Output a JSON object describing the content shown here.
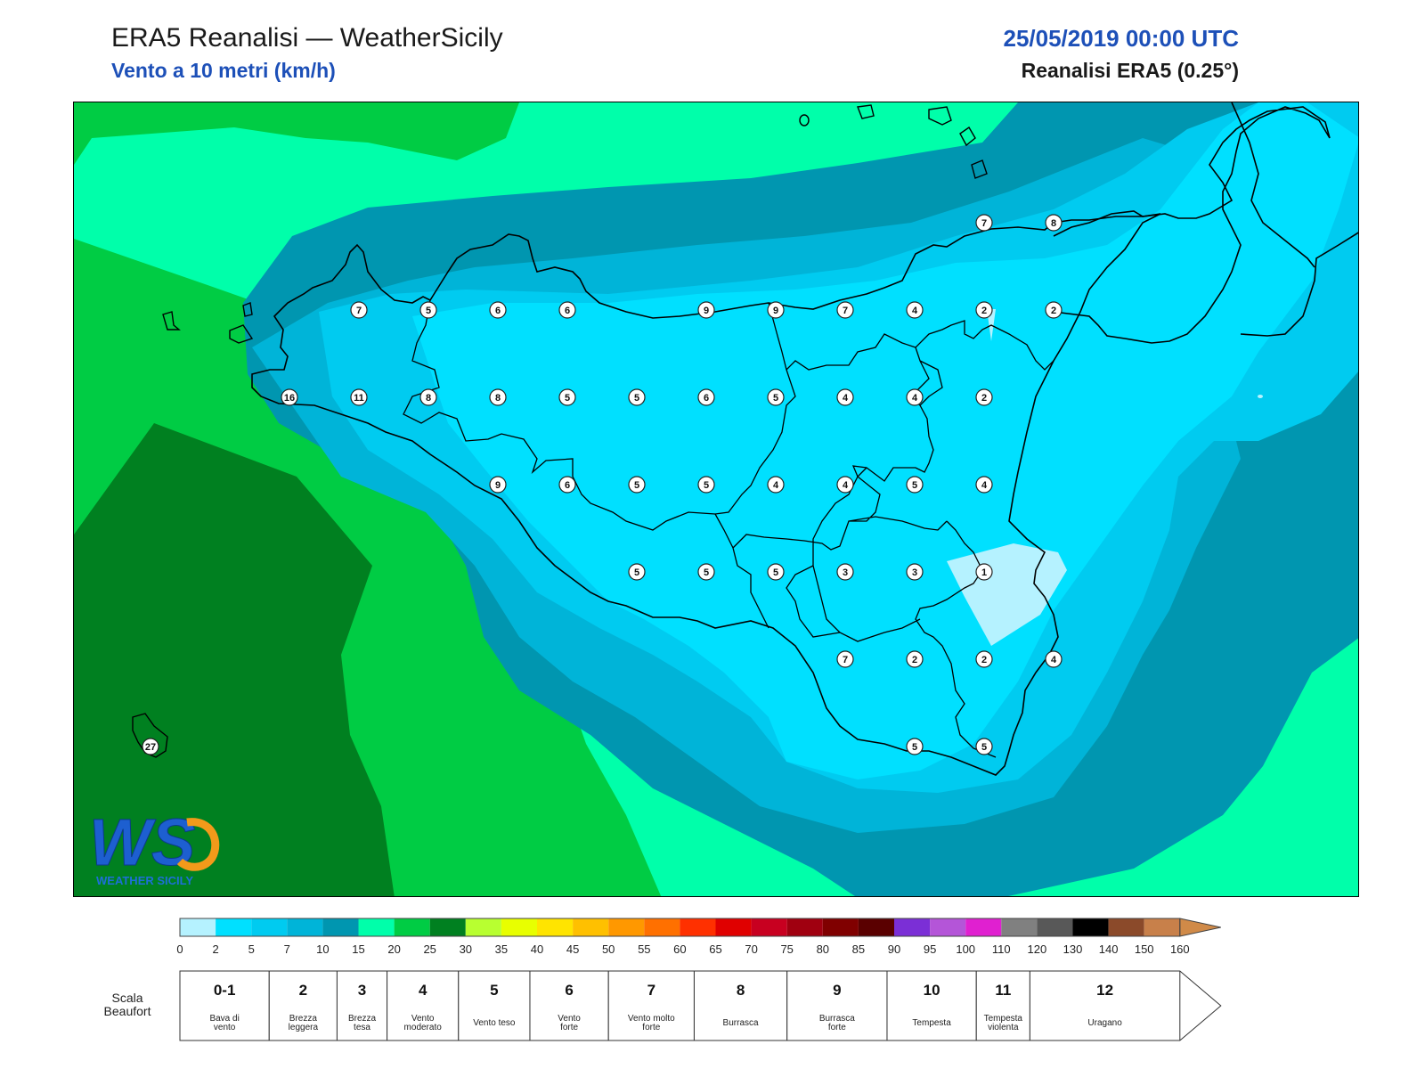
{
  "header": {
    "title": "ERA5 Reanalisi — WeatherSicily",
    "subtitle": "Vento a 10 metri (km/h)",
    "datetime": "25/05/2019 00:00 UTC",
    "model": "Reanalisi ERA5 (0.25°)"
  },
  "logo": {
    "letters": "WS",
    "tagline": "WEATHER SICILY",
    "icon": "ws-logo-icon"
  },
  "wind_stations": [
    {
      "lon": 12.5,
      "lat": 38.0,
      "value": "16"
    },
    {
      "lon": 13.0,
      "lat": 38.25,
      "value": "7"
    },
    {
      "lon": 13.0,
      "lat": 38.0,
      "value": "11"
    },
    {
      "lon": 13.5,
      "lat": 38.25,
      "value": "5"
    },
    {
      "lon": 13.5,
      "lat": 38.0,
      "value": "8"
    },
    {
      "lon": 14.0,
      "lat": 38.25,
      "value": "6"
    },
    {
      "lon": 14.0,
      "lat": 38.0,
      "value": "8"
    },
    {
      "lon": 14.0,
      "lat": 37.75,
      "value": "9"
    },
    {
      "lon": 14.5,
      "lat": 38.25,
      "value": "6"
    },
    {
      "lon": 14.5,
      "lat": 38.0,
      "value": "5"
    },
    {
      "lon": 14.5,
      "lat": 37.75,
      "value": "6"
    },
    {
      "lon": 15.0,
      "lat": 38.0,
      "value": "5"
    },
    {
      "lon": 15.0,
      "lat": 37.75,
      "value": "5"
    },
    {
      "lon": 15.0,
      "lat": 37.5,
      "value": "5"
    },
    {
      "lon": 15.5,
      "lat": 38.25,
      "value": "9"
    },
    {
      "lon": 15.5,
      "lat": 38.0,
      "value": "6"
    },
    {
      "lon": 15.5,
      "lat": 37.75,
      "value": "5"
    },
    {
      "lon": 15.5,
      "lat": 37.5,
      "value": "5"
    },
    {
      "lon": 16.0,
      "lat": 38.25,
      "value": "9"
    },
    {
      "lon": 16.0,
      "lat": 38.0,
      "value": "5"
    },
    {
      "lon": 16.0,
      "lat": 37.75,
      "value": "4"
    },
    {
      "lon": 16.0,
      "lat": 37.5,
      "value": "5"
    },
    {
      "lon": 16.5,
      "lat": 38.25,
      "value": "7"
    },
    {
      "lon": 16.5,
      "lat": 38.0,
      "value": "4"
    },
    {
      "lon": 16.5,
      "lat": 37.75,
      "value": "4"
    },
    {
      "lon": 16.5,
      "lat": 37.5,
      "value": "3"
    },
    {
      "lon": 16.5,
      "lat": 37.25,
      "value": "7"
    },
    {
      "lon": 17.0,
      "lat": 38.25,
      "value": "4"
    },
    {
      "lon": 17.0,
      "lat": 38.0,
      "value": "4"
    },
    {
      "lon": 17.0,
      "lat": 37.75,
      "value": "5"
    },
    {
      "lon": 17.0,
      "lat": 37.5,
      "value": "3"
    },
    {
      "lon": 17.0,
      "lat": 37.25,
      "value": "2"
    },
    {
      "lon": 17.0,
      "lat": 37.0,
      "value": "5"
    },
    {
      "lon": 17.5,
      "lat": 38.5,
      "value": "7"
    },
    {
      "lon": 17.5,
      "lat": 38.25,
      "value": "2"
    },
    {
      "lon": 17.5,
      "lat": 38.0,
      "value": "2"
    },
    {
      "lon": 17.5,
      "lat": 37.75,
      "value": "4"
    },
    {
      "lon": 17.5,
      "lat": 37.5,
      "value": "1"
    },
    {
      "lon": 17.5,
      "lat": 37.25,
      "value": "2"
    },
    {
      "lon": 17.5,
      "lat": 37.0,
      "value": "5"
    },
    {
      "lon": 18.0,
      "lat": 38.5,
      "value": "8"
    },
    {
      "lon": 18.0,
      "lat": 38.25,
      "value": "2"
    },
    {
      "lon": 18.0,
      "lat": 37.25,
      "value": "4"
    },
    {
      "lon": 11.5,
      "lat": 37.0,
      "value": "27"
    }
  ],
  "legend": {
    "colors": [
      "#b5f2ff",
      "#00e0ff",
      "#00cbf0",
      "#00b4d8",
      "#0096b0",
      "#00ffaa",
      "#00cc44",
      "#008020",
      "#b8ff30",
      "#e8ff00",
      "#ffe400",
      "#ffc000",
      "#ff9800",
      "#ff7000",
      "#ff3000",
      "#e00000",
      "#c80020",
      "#a00010",
      "#800000",
      "#5a0000",
      "#7b2fd6",
      "#b455d8",
      "#e020d0",
      "#808080",
      "#585858",
      "#000000",
      "#8b4a2a",
      "#c8804a"
    ],
    "arrow_color": "#d08a48",
    "ticks": [
      "0",
      "2",
      "5",
      "7",
      "10",
      "15",
      "20",
      "25",
      "30",
      "35",
      "40",
      "45",
      "50",
      "55",
      "60",
      "65",
      "70",
      "75",
      "80",
      "85",
      "90",
      "95",
      "100",
      "110",
      "120",
      "130",
      "140",
      "150",
      "160"
    ],
    "beaufort_title": "Scala\nBeaufort",
    "beaufort": [
      {
        "num": "0-1",
        "desc": "Bava di\nvento",
        "from": 0,
        "to": 2.5
      },
      {
        "num": "2",
        "desc": "Brezza\nleggera",
        "from": 2.5,
        "to": 4.4
      },
      {
        "num": "3",
        "desc": "Brezza\ntesa",
        "from": 4.4,
        "to": 5.8
      },
      {
        "num": "4",
        "desc": "Vento\nmoderato",
        "from": 5.8,
        "to": 7.8
      },
      {
        "num": "5",
        "desc": "Vento teso",
        "from": 7.8,
        "to": 9.8
      },
      {
        "num": "6",
        "desc": "Vento\nforte",
        "from": 9.8,
        "to": 12.0
      },
      {
        "num": "7",
        "desc": "Vento molto\nforte",
        "from": 12.0,
        "to": 14.4
      },
      {
        "num": "8",
        "desc": "Burrasca",
        "from": 14.4,
        "to": 17.0
      },
      {
        "num": "9",
        "desc": "Burrasca\nforte",
        "from": 17.0,
        "to": 19.8
      },
      {
        "num": "10",
        "desc": "Tempesta",
        "from": 19.8,
        "to": 22.3
      },
      {
        "num": "11",
        "desc": "Tempesta\nviolenta",
        "from": 22.3,
        "to": 23.8
      },
      {
        "num": "12",
        "desc": "Uragano",
        "from": 23.8,
        "to": 28
      }
    ]
  }
}
